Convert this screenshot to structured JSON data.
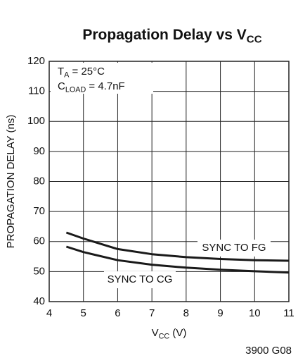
{
  "chart_data": {
    "type": "line",
    "title": [
      "Propagation Delay vs V",
      "CC"
    ],
    "x_label": [
      "V",
      "CC",
      " (V)"
    ],
    "y_label": "PROPAGATION DELAY (ns)",
    "annotations": [
      [
        "T",
        "A",
        " = 25°C"
      ],
      [
        "C",
        "LOAD",
        " = 4.7nF"
      ]
    ],
    "footnote": "3900 G08",
    "x": [
      4.5,
      5,
      6,
      7,
      8,
      9,
      10,
      11
    ],
    "series": [
      {
        "name": "SYNC TO FG",
        "color": "#1a1a1a",
        "values": [
          63,
          61,
          57.5,
          55.8,
          54.8,
          54.2,
          53.8,
          53.6
        ]
      },
      {
        "name": "SYNC TO CG",
        "color": "#1a1a1a",
        "values": [
          58.3,
          56.5,
          53.8,
          52.3,
          51.3,
          50.6,
          50.1,
          49.7
        ]
      }
    ],
    "xlim": [
      4,
      11
    ],
    "xticks": [
      4,
      5,
      6,
      7,
      8,
      9,
      10,
      11
    ],
    "ylim": [
      40,
      120
    ],
    "yticks": [
      40,
      50,
      60,
      70,
      80,
      90,
      100,
      110,
      120
    ],
    "grid": true
  }
}
